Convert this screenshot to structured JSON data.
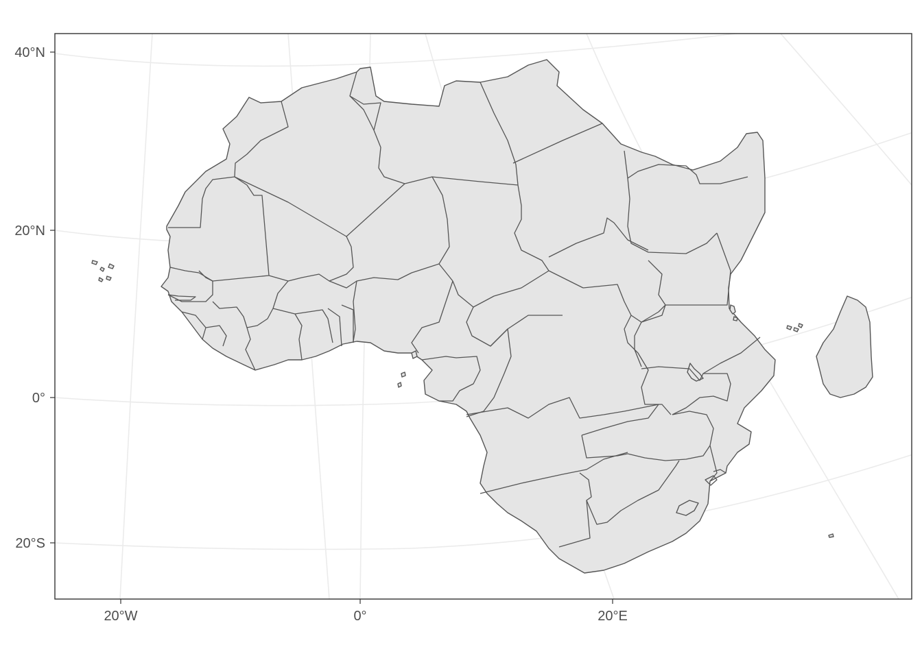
{
  "map": {
    "projection": "lambert-azimuthal-equal-area",
    "region": "Africa",
    "colors": {
      "background": "#ffffff",
      "panel_border": "#333333",
      "grid": "#ebebeb",
      "land_fill": "#e5e5e5",
      "land_stroke": "#555555",
      "tick_text": "#4d4d4d"
    },
    "lat_labels": [
      "40°N",
      "20°N",
      "0°",
      "20°S"
    ],
    "lon_labels": [
      "20°W",
      "0°",
      "20°E"
    ]
  }
}
